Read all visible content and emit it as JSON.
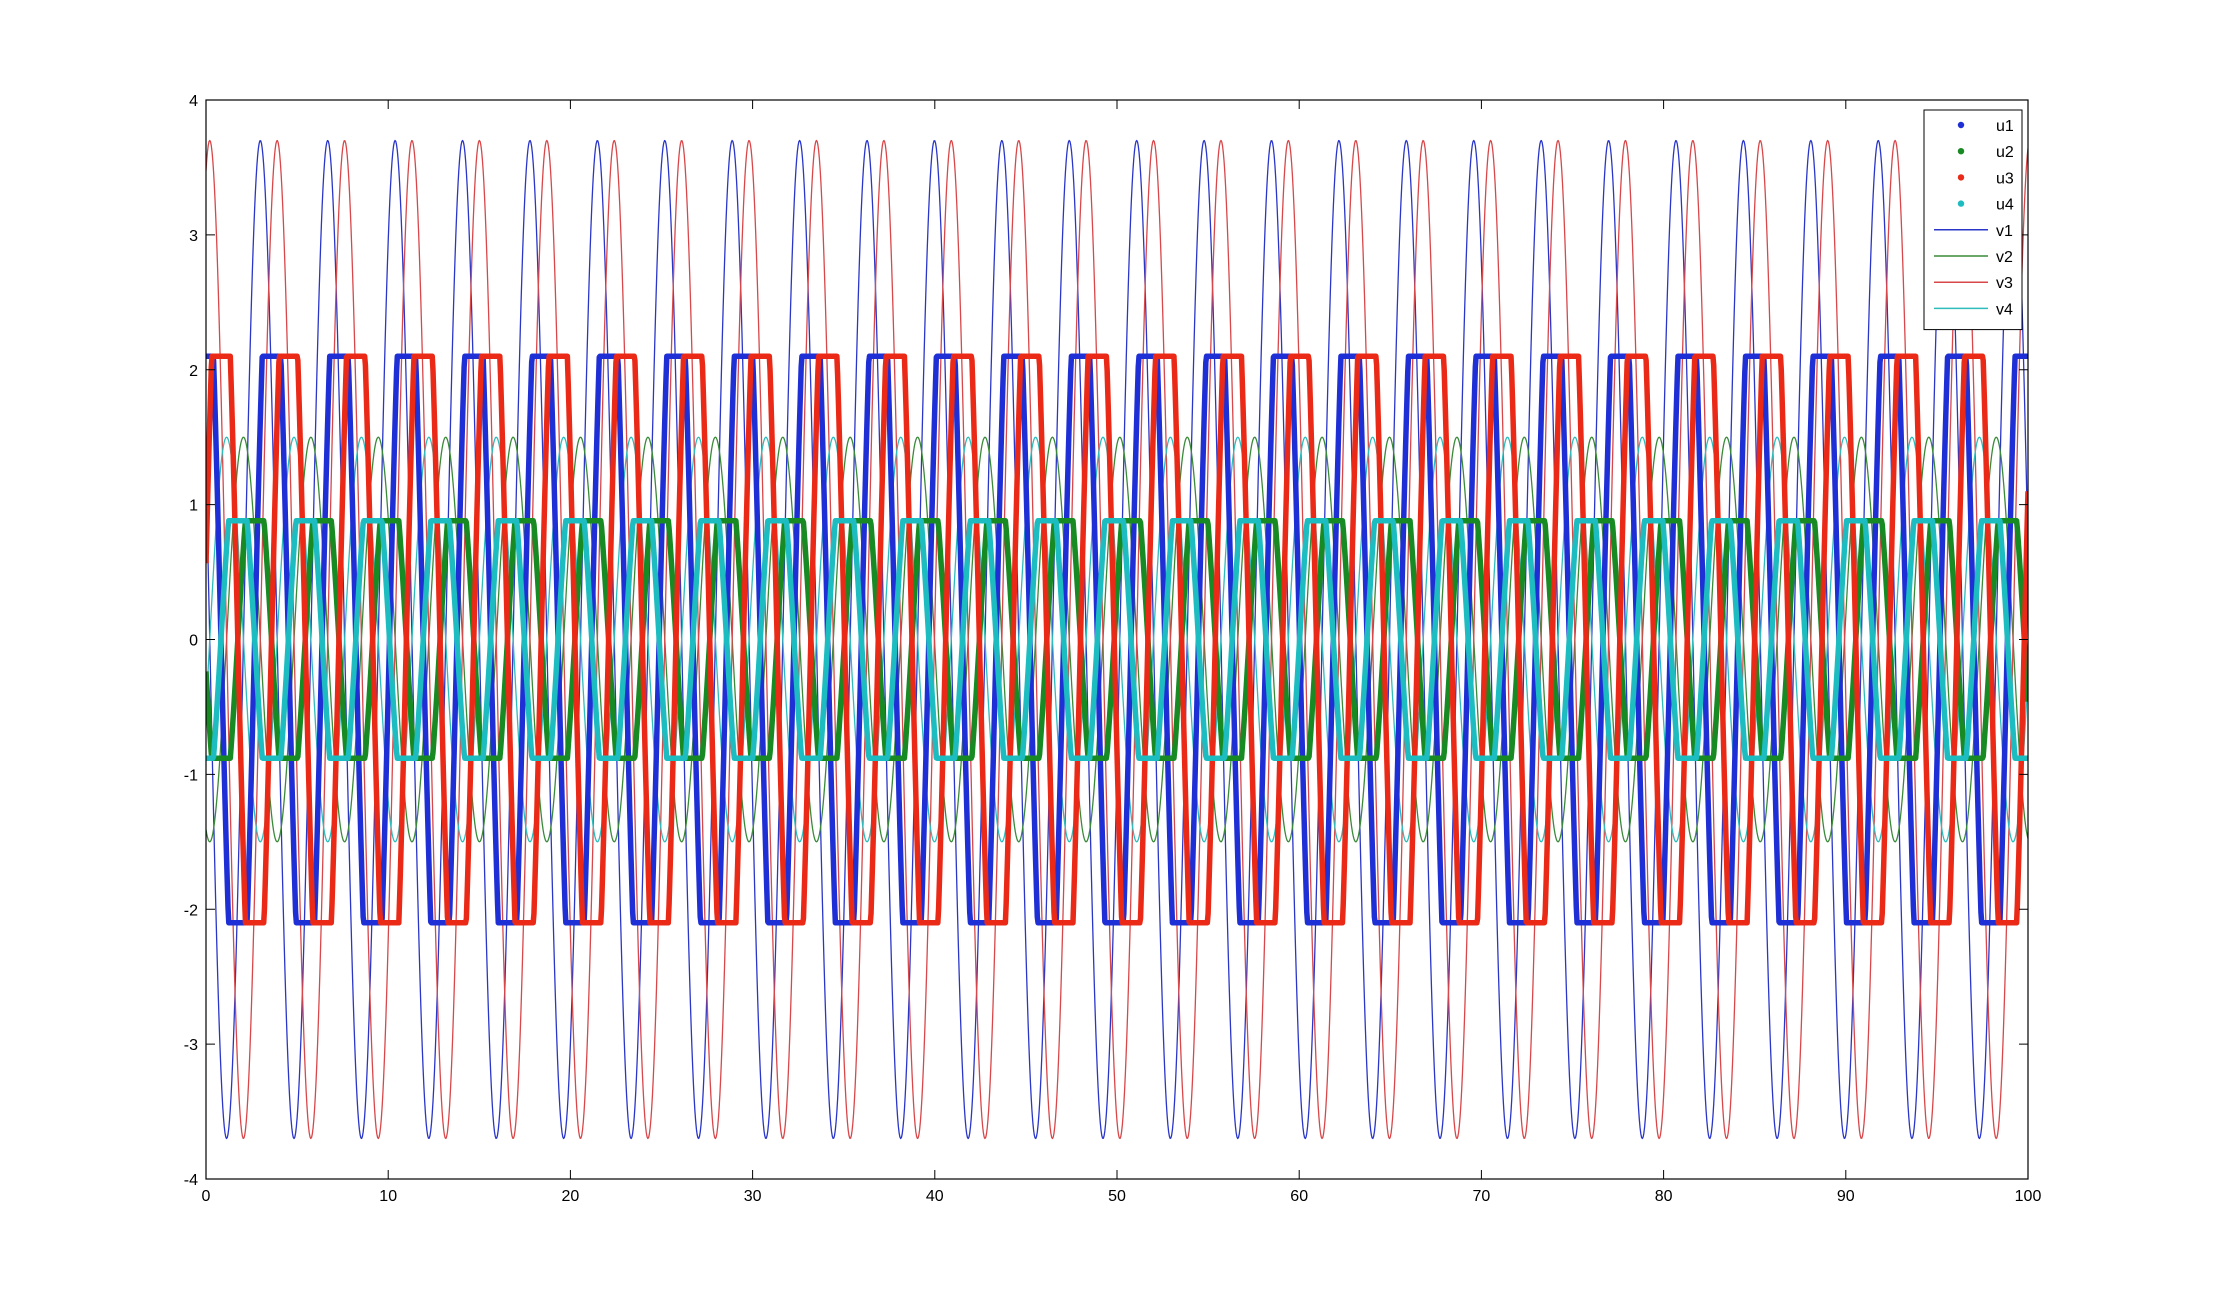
{
  "chart_data": {
    "type": "line",
    "title": "",
    "xlabel": "",
    "ylabel": "",
    "xlim": [
      0,
      100
    ],
    "ylim": [
      -4,
      4
    ],
    "x_ticks": [
      0,
      10,
      20,
      30,
      40,
      50,
      60,
      70,
      80,
      90,
      100
    ],
    "y_ticks": [
      -4,
      -3,
      -2,
      -1,
      0,
      1,
      2,
      3,
      4
    ],
    "grid": false,
    "legend_position": "top-right",
    "period": 3.7,
    "series": [
      {
        "name": "u1",
        "style": "thick",
        "color": "#1f2fd6",
        "amplitude": 2.1,
        "phase_deg": 100
      },
      {
        "name": "u2",
        "style": "thick",
        "color": "#178a23",
        "amplitude": 0.88,
        "phase_deg": 190
      },
      {
        "name": "u3",
        "style": "thick",
        "color": "#ea2a17",
        "amplitude": 2.1,
        "phase_deg": 10
      },
      {
        "name": "u4",
        "style": "thick",
        "color": "#1cbcc0",
        "amplitude": 0.88,
        "phase_deg": 280
      },
      {
        "name": "v1",
        "style": "thin",
        "color": "#2a36c8",
        "amplitude": 3.7,
        "phase_deg": 160
      },
      {
        "name": "v2",
        "style": "thin",
        "color": "#3a8a3a",
        "amplitude": 1.5,
        "phase_deg": 250
      },
      {
        "name": "v3",
        "style": "thin",
        "color": "#d8474a",
        "amplitude": 3.7,
        "phase_deg": 70
      },
      {
        "name": "v4",
        "style": "thin",
        "color": "#2fbcbc",
        "amplitude": 1.5,
        "phase_deg": 340
      }
    ]
  }
}
